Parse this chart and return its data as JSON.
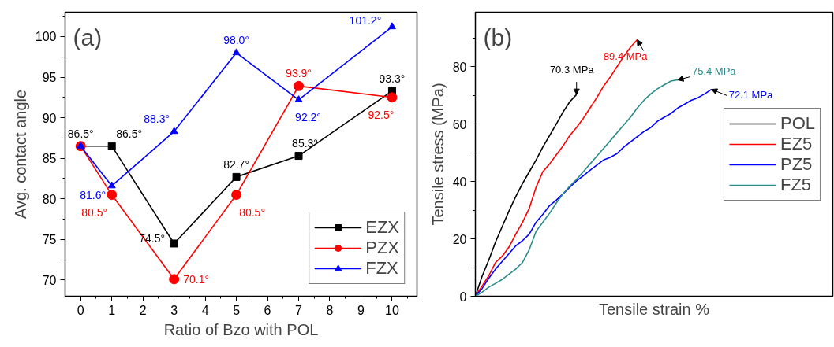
{
  "chart_data": [
    {
      "type": "line",
      "title": "(a)",
      "xlabel": "Ratio of Bzo with POL",
      "ylabel": "Avg. contact angle",
      "x": [
        0,
        1,
        3,
        5,
        7,
        10
      ],
      "xlim": [
        -0.5,
        10.8
      ],
      "xticks": [
        0,
        1,
        2,
        3,
        4,
        5,
        6,
        7,
        8,
        9,
        10,
        {
          "value": 0.5,
          "label": null
        },
        {
          "value": 1.5,
          "label": null
        },
        {
          "value": 2.5,
          "label": null
        },
        {
          "value": 3.5,
          "label": null
        },
        {
          "value": 4.5,
          "label": null
        },
        {
          "value": 5.5,
          "label": null
        },
        {
          "value": 6.5,
          "label": null
        },
        {
          "value": 7.5,
          "label": null
        },
        {
          "value": 8.5,
          "label": null
        },
        {
          "value": 9.5,
          "label": null
        },
        {
          "value": 10.5,
          "label": null
        }
      ],
      "ylim": [
        68,
        103
      ],
      "yticks": [
        70,
        75,
        80,
        85,
        90,
        95,
        100,
        {
          "value": 72.5,
          "label": null
        },
        {
          "value": 77.5,
          "label": null
        },
        {
          "value": 82.5,
          "label": null
        },
        {
          "value": 87.5,
          "label": null
        },
        {
          "value": 92.5,
          "label": null
        },
        {
          "value": 97.5,
          "label": null
        },
        {
          "value": 102.5,
          "label": null
        }
      ],
      "legend": "bottom right",
      "series": [
        {
          "name": "EZX",
          "color": "#000000",
          "marker": "square",
          "values": [
            86.5,
            86.5,
            74.5,
            82.7,
            85.3,
            93.3
          ],
          "value_labels": [
            "86.5°",
            "86.5°",
            "74.5°",
            "82.7°",
            "85.3°",
            "93.3°"
          ]
        },
        {
          "name": "PZX",
          "color": "#ff0000",
          "marker": "circle",
          "values": [
            86.5,
            80.5,
            70.1,
            80.5,
            93.9,
            92.5
          ],
          "value_labels": [
            null,
            "80.5°",
            "70.1°",
            "80.5°",
            "93.9°",
            "92.5°"
          ]
        },
        {
          "name": "FZX",
          "color": "#0000ff",
          "marker": "triangle",
          "values": [
            86.5,
            81.6,
            88.3,
            98.0,
            92.2,
            101.2
          ],
          "value_labels": [
            null,
            "81.6°",
            "88.3°",
            "98.0°",
            "92.2°",
            "101.2°"
          ]
        }
      ]
    },
    {
      "type": "line",
      "title": "(b)",
      "xlabel": "Tensile strain %",
      "ylabel": "Tensile stress (MPa)",
      "categories": [
        null,
        null,
        null,
        null,
        null,
        null,
        null,
        null,
        null,
        null,
        null,
        null,
        null,
        null,
        null,
        null,
        null,
        null,
        null,
        null,
        null,
        null,
        null,
        null,
        null,
        null,
        null,
        null,
        null,
        null,
        null,
        null,
        null,
        null,
        null,
        null,
        null,
        null,
        null,
        null,
        null,
        null,
        null,
        null,
        null,
        null,
        null,
        null,
        null,
        null,
        null,
        null,
        null,
        null
      ],
      "ylim": [
        0,
        99
      ],
      "yticks": [
        0,
        20,
        40,
        60,
        80,
        {
          "value": 10,
          "label": null
        },
        {
          "value": 30,
          "label": null
        },
        {
          "value": 50,
          "label": null
        },
        {
          "value": 70,
          "label": null
        },
        {
          "value": 90,
          "label": null
        }
      ],
      "tick_labels": "y",
      "legend": "right",
      "annotations": [
        "70.3 MPa",
        "89.4 MPa",
        "72.1 MPa",
        "75.4 MPa"
      ],
      "series": [
        {
          "name": "POL",
          "color": "#000000",
          "values": [
            0,
            7,
            12.7,
            19,
            24.4,
            29.8,
            34.8,
            39.3,
            43.4,
            47.5,
            52,
            56,
            60,
            64.2,
            67.8,
            70.3,
            null,
            null,
            null,
            null,
            null,
            null,
            null,
            null,
            null,
            null,
            null,
            null,
            null,
            null,
            null,
            null,
            null,
            null,
            null,
            null,
            null,
            null,
            null,
            null,
            null,
            null,
            null,
            null,
            null,
            null,
            null,
            null,
            null,
            null,
            null,
            null,
            null,
            null
          ]
        },
        {
          "name": "EZ5",
          "color": "#ff0000",
          "values": [
            0,
            3.6,
            7.2,
            11.8,
            14,
            17.2,
            21.7,
            25.8,
            30.7,
            38,
            43.4,
            46.1,
            49.3,
            52.4,
            56,
            58.8,
            62,
            65.6,
            69.2,
            73.2,
            76.4,
            80,
            83.6,
            86.8,
            89.4,
            null,
            null,
            null,
            null,
            null,
            null,
            null,
            null,
            null,
            null,
            null,
            null,
            null,
            null,
            null,
            null,
            null,
            null,
            null,
            null,
            null,
            null,
            null,
            null,
            null,
            null,
            null,
            null,
            null
          ]
        },
        {
          "name": "PZ5",
          "color": "#0000ff",
          "values": [
            0,
            2.7,
            6.3,
            9.5,
            12.2,
            14.9,
            17.6,
            19.4,
            21.7,
            25.8,
            28.5,
            31.6,
            33.5,
            35.7,
            38,
            40.2,
            42,
            43.9,
            45.7,
            47.5,
            48.4,
            49.7,
            52,
            53.8,
            55.6,
            57.4,
            58.8,
            61,
            62.4,
            63.7,
            65.6,
            66.9,
            68.3,
            69.2,
            70.5,
            72.1,
            null,
            null,
            null,
            null,
            null,
            null,
            null,
            null,
            null,
            null,
            null,
            null,
            null,
            null,
            null,
            null,
            null,
            null
          ]
        },
        {
          "name": "FZ5",
          "color": "#2a8a8a",
          "values": [
            0,
            1.4,
            3.2,
            4.5,
            5.9,
            7.7,
            9.5,
            11.8,
            16.3,
            22.6,
            25.8,
            28.9,
            32.5,
            35.7,
            38.4,
            40.7,
            43.4,
            46.1,
            48.8,
            51.5,
            54.2,
            57,
            59.7,
            62.4,
            65.6,
            68.3,
            70.5,
            72.3,
            73.7,
            75,
            75.4,
            null,
            null,
            null,
            null,
            null,
            null,
            null,
            null,
            null,
            null,
            null,
            null,
            null,
            null,
            null,
            null,
            null,
            null,
            null,
            null,
            null,
            null,
            null
          ]
        }
      ]
    }
  ]
}
